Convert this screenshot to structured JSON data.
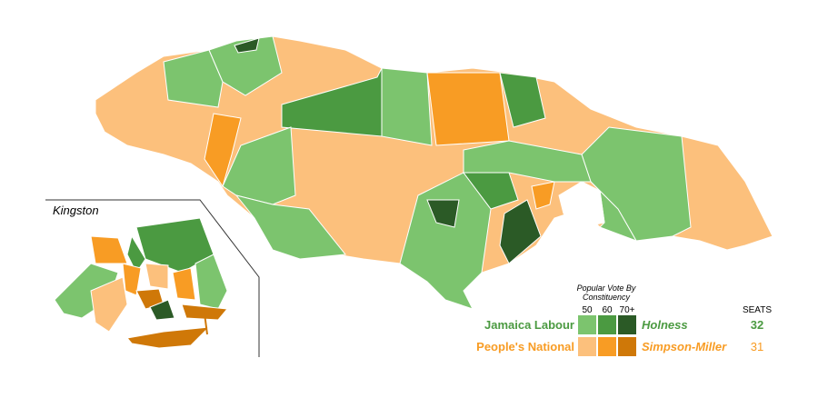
{
  "inset": {
    "title": "Kingston"
  },
  "legend": {
    "title": "Popular Vote By Constituency",
    "levels": [
      "50",
      "60",
      "70+"
    ],
    "seats_header": "SEATS",
    "parties": [
      {
        "name": "Jamaica Labour",
        "leader": "Holness",
        "seats": 32,
        "colors": [
          "#7cc46e",
          "#4b9a41",
          "#2b5a26"
        ],
        "text_color": "#4b9a41"
      },
      {
        "name": "People's National",
        "leader": "Simpson-Miller",
        "seats": 31,
        "colors": [
          "#fcc07c",
          "#f89c24",
          "#cf7808"
        ],
        "text_color": "#f89c24"
      }
    ]
  }
}
